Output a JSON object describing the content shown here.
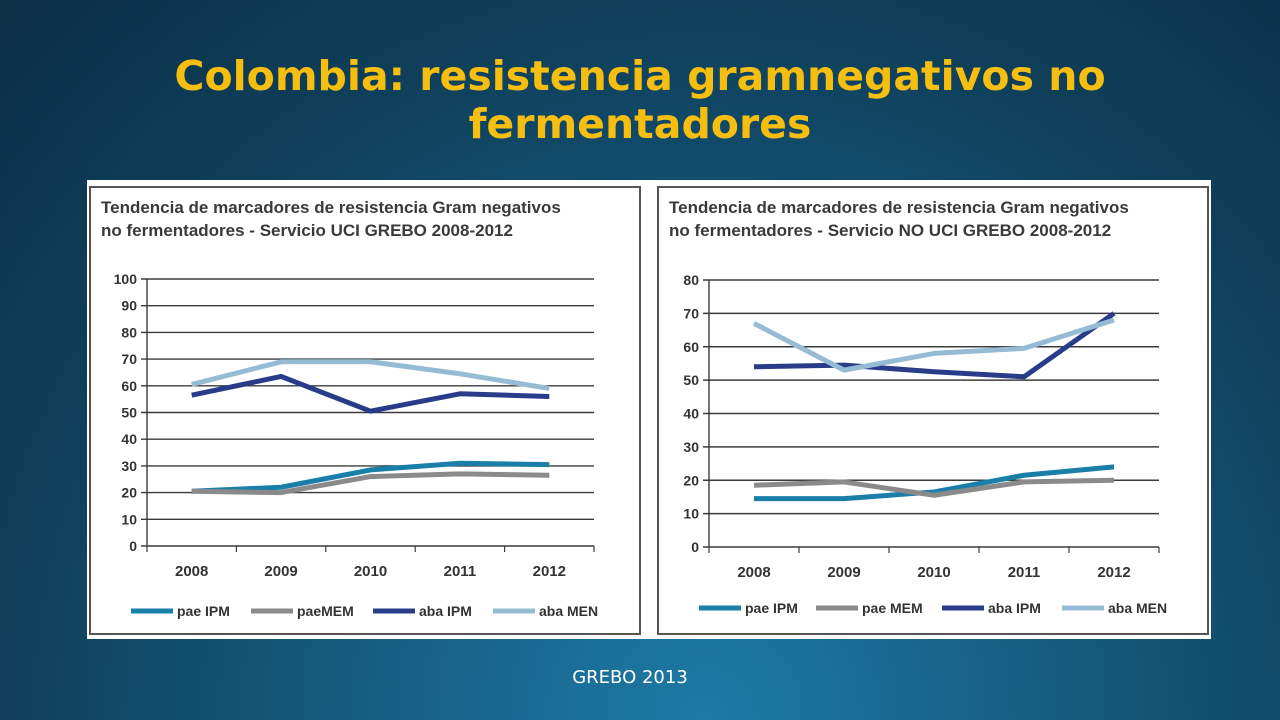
{
  "slide": {
    "title_line1": "Colombia: resistencia gramnegativos no",
    "title_line2": "fermentadores",
    "footer": "GREBO 2013"
  },
  "colors": {
    "title": "#f6be0f",
    "pae_ipm": "#1a7fa8",
    "pae_mem": "#8a8a8a",
    "aba_ipm": "#283c8a",
    "aba_men": "#95bcd4"
  },
  "chart_data": [
    {
      "type": "line",
      "title_line1": "Tendencia de marcadores de resistencia Gram negativos",
      "title_line2": "no fermentadores - Servicio UCI  GREBO 2008-2012",
      "categories": [
        "2008",
        "2009",
        "2010",
        "2011",
        "2012"
      ],
      "ylim": [
        0,
        100
      ],
      "yticks": [
        0,
        10,
        20,
        30,
        40,
        50,
        60,
        70,
        80,
        90,
        100
      ],
      "grid": true,
      "legend_position": "bottom",
      "series": [
        {
          "name": "pae IPM",
          "color_key": "pae_ipm",
          "values": [
            20.5,
            22,
            28.5,
            31,
            30.5
          ]
        },
        {
          "name": "paeMEM",
          "color_key": "pae_mem",
          "values": [
            20.5,
            20,
            26,
            27,
            26.5
          ]
        },
        {
          "name": "aba IPM",
          "color_key": "aba_ipm",
          "values": [
            56.5,
            63.5,
            50.5,
            57,
            56
          ]
        },
        {
          "name": "aba MEN",
          "color_key": "aba_men",
          "values": [
            60.5,
            69,
            69,
            64.5,
            59
          ]
        }
      ]
    },
    {
      "type": "line",
      "title_line1": "Tendencia de marcadores de resistencia Gram negativos",
      "title_line2": "no fermentadores - Servicio  NO UCI  GREBO 2008-2012",
      "categories": [
        "2008",
        "2009",
        "2010",
        "2011",
        "2012"
      ],
      "ylim": [
        0,
        80
      ],
      "yticks": [
        0,
        10,
        20,
        30,
        40,
        50,
        60,
        70,
        80
      ],
      "grid": true,
      "legend_position": "bottom",
      "series": [
        {
          "name": "pae IPM",
          "color_key": "pae_ipm",
          "values": [
            14.5,
            14.5,
            16.5,
            21.5,
            24
          ]
        },
        {
          "name": "pae MEM",
          "color_key": "pae_mem",
          "values": [
            18.5,
            19.5,
            15.5,
            19.5,
            20
          ]
        },
        {
          "name": "aba IPM",
          "color_key": "aba_ipm",
          "values": [
            54,
            54.5,
            52.5,
            51,
            70
          ]
        },
        {
          "name": "aba MEN",
          "color_key": "aba_men",
          "values": [
            67,
            53,
            58,
            59.5,
            68
          ]
        }
      ]
    }
  ]
}
